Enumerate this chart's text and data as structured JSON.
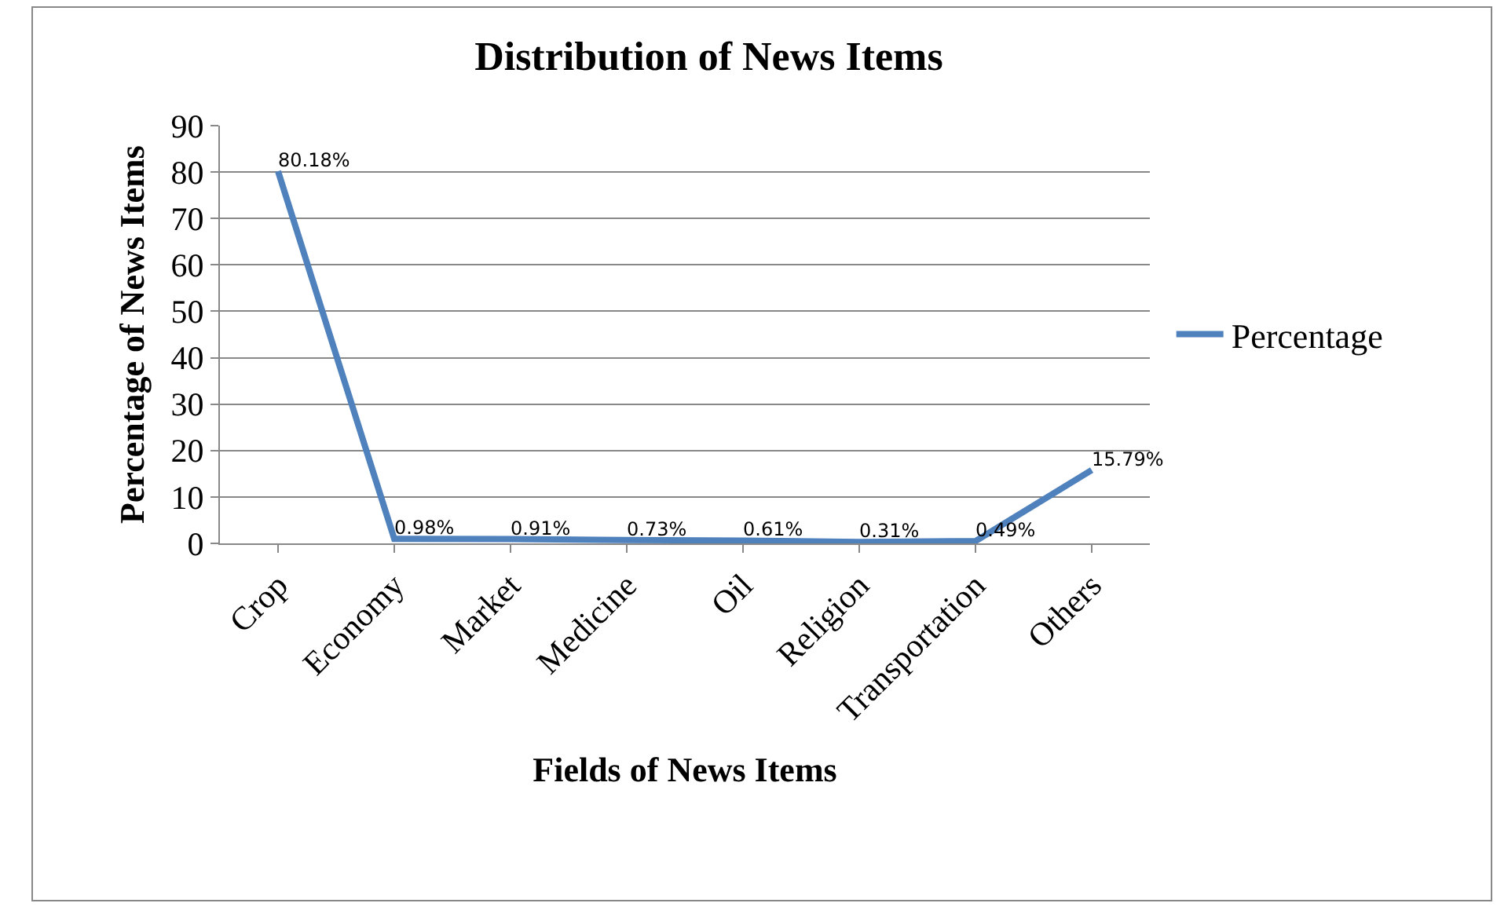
{
  "chart_data": {
    "type": "line",
    "title": "Distribution of News Items",
    "xlabel": "Fields of News Items",
    "ylabel": "Percentage of News Items",
    "categories": [
      "Crop",
      "Economy",
      "Market",
      "Medicine",
      "Oil",
      "Religion",
      "Transportation",
      "Others"
    ],
    "series": [
      {
        "name": "Percentage",
        "color": "#4f81bd",
        "values": [
          80.18,
          0.98,
          0.91,
          0.73,
          0.61,
          0.31,
          0.49,
          15.79
        ],
        "value_labels": [
          "80.18%",
          "0.98%",
          "0.91%",
          "0.73%",
          "0.61%",
          "0.31%",
          "0.49%",
          "15.79%"
        ]
      }
    ],
    "ylim": [
      0,
      90
    ],
    "yticks": [
      0,
      10,
      20,
      30,
      40,
      50,
      60,
      70,
      80,
      90
    ],
    "grid": "y",
    "legend": "right",
    "marker": "none",
    "line_style": "solid"
  }
}
